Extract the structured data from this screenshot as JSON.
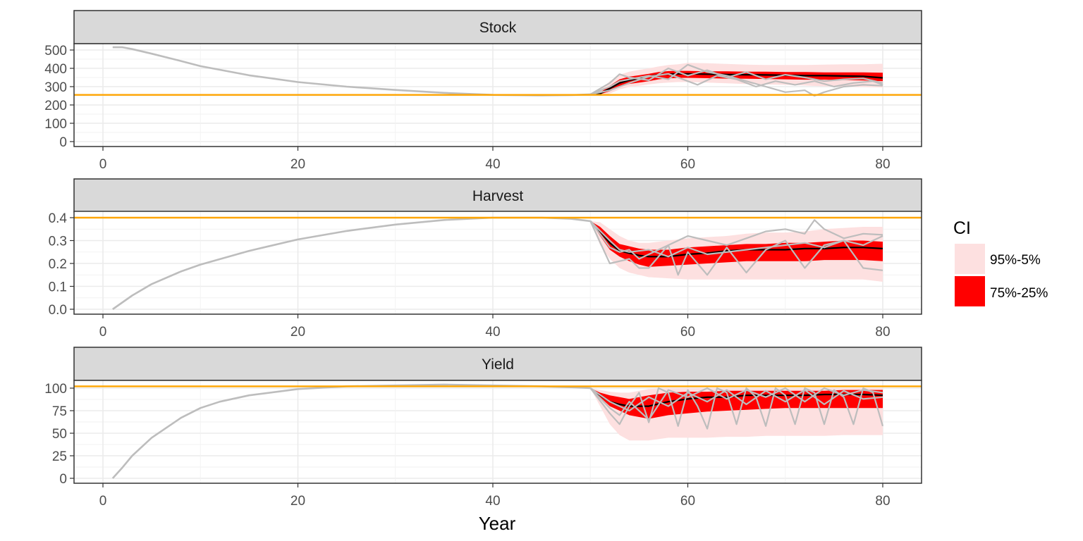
{
  "chart_data": {
    "type": "area",
    "x_label": "Year",
    "x_range": [
      0,
      80
    ],
    "x_ticks": [
      "0",
      "20",
      "40",
      "60",
      "80"
    ],
    "grid": true,
    "legend": {
      "title": "CI",
      "position": "right",
      "items": [
        {
          "label": "95%-5%",
          "color": "#fde0e0"
        },
        {
          "label": "75%-25%",
          "color": "#ff0000"
        }
      ]
    },
    "colors": {
      "reference_line": "#ffa500",
      "median": "#000000",
      "iterations": "#bdbdbd",
      "inner_band": "#ff0000",
      "outer_band": "#fde0e0",
      "strip": "#d9d9d9"
    },
    "panels": [
      {
        "title": "Stock",
        "y_range": [
          0,
          520
        ],
        "y_ticks": [
          0,
          100,
          200,
          300,
          400,
          500
        ],
        "reference": 255,
        "history": {
          "years": [
            1,
            2,
            3,
            5,
            8,
            10,
            15,
            20,
            25,
            30,
            35,
            40,
            45,
            48,
            50
          ],
          "values": [
            515,
            515,
            505,
            480,
            440,
            412,
            362,
            325,
            300,
            282,
            266,
            255,
            252,
            254,
            258
          ]
        },
        "projection": {
          "years": [
            50,
            51,
            52,
            53,
            54,
            55,
            56,
            57,
            58,
            59,
            60,
            62,
            64,
            66,
            68,
            70,
            72,
            74,
            76,
            78,
            80
          ],
          "median": [
            258,
            262,
            290,
            320,
            335,
            345,
            355,
            365,
            368,
            370,
            370,
            368,
            366,
            365,
            364,
            362,
            360,
            360,
            358,
            356,
            348
          ],
          "q25": [
            256,
            258,
            275,
            300,
            315,
            322,
            330,
            340,
            345,
            348,
            348,
            346,
            344,
            343,
            342,
            340,
            338,
            338,
            336,
            334,
            330
          ],
          "q75": [
            260,
            268,
            305,
            340,
            355,
            362,
            370,
            380,
            385,
            386,
            386,
            384,
            384,
            382,
            382,
            380,
            380,
            378,
            378,
            378,
            376
          ],
          "q05": [
            252,
            248,
            262,
            285,
            298,
            305,
            312,
            318,
            322,
            325,
            325,
            322,
            318,
            314,
            312,
            310,
            306,
            302,
            300,
            298,
            295
          ],
          "q95": [
            264,
            280,
            330,
            365,
            382,
            392,
            400,
            410,
            418,
            422,
            430,
            428,
            424,
            420,
            418,
            418,
            418,
            420,
            422,
            422,
            425
          ]
        },
        "iterations": [
          {
            "years": [
              50,
              52,
              53,
              54,
              56,
              58,
              60,
              62,
              64,
              66,
              68,
              70,
              72,
              74,
              76,
              78,
              80
            ],
            "values": [
              258,
              320,
              368,
              350,
              335,
              400,
              360,
              390,
              350,
              380,
              340,
              365,
              350,
              330,
              340,
              345,
              320
            ]
          },
          {
            "years": [
              50,
              52,
              53,
              54,
              56,
              58,
              60,
              62,
              64,
              66,
              68,
              70,
              72,
              73,
              74,
              76,
              78,
              80
            ],
            "values": [
              258,
              300,
              330,
              340,
              360,
              340,
              420,
              380,
              360,
              330,
              300,
              270,
              280,
              250,
              270,
              300,
              310,
              305
            ]
          },
          {
            "years": [
              50,
              52,
              54,
              56,
              58,
              60,
              61,
              63,
              65,
              67,
              69,
              71,
              73,
              75,
              77,
              79,
              80
            ],
            "values": [
              258,
              280,
              320,
              355,
              370,
              330,
              310,
              360,
              340,
              300,
              330,
              310,
              330,
              300,
              320,
              330,
              310
            ]
          }
        ]
      },
      {
        "title": "Harvest",
        "y_range": [
          0,
          0.4
        ],
        "y_ticks": [
          "0.0",
          "0.1",
          "0.2",
          "0.3",
          "0.4"
        ],
        "reference": 0.4,
        "history": {
          "years": [
            1,
            3,
            5,
            8,
            10,
            15,
            20,
            25,
            30,
            35,
            40,
            45,
            48,
            50
          ],
          "values": [
            0.0,
            0.06,
            0.11,
            0.165,
            0.195,
            0.255,
            0.305,
            0.342,
            0.37,
            0.39,
            0.4,
            0.4,
            0.395,
            0.385
          ]
        },
        "projection": {
          "years": [
            50,
            51,
            52,
            53,
            54,
            55,
            56,
            58,
            60,
            62,
            64,
            66,
            68,
            70,
            72,
            74,
            76,
            78,
            80
          ],
          "median": [
            0.385,
            0.34,
            0.29,
            0.255,
            0.245,
            0.235,
            0.23,
            0.23,
            0.24,
            0.245,
            0.255,
            0.26,
            0.26,
            0.26,
            0.265,
            0.265,
            0.27,
            0.27,
            0.265
          ],
          "q25": [
            0.385,
            0.32,
            0.26,
            0.23,
            0.21,
            0.195,
            0.185,
            0.19,
            0.195,
            0.2,
            0.205,
            0.21,
            0.21,
            0.21,
            0.21,
            0.215,
            0.215,
            0.215,
            0.21
          ],
          "q75": [
            0.385,
            0.36,
            0.32,
            0.285,
            0.275,
            0.265,
            0.26,
            0.26,
            0.27,
            0.275,
            0.28,
            0.285,
            0.285,
            0.29,
            0.29,
            0.295,
            0.3,
            0.3,
            0.295
          ],
          "q05": [
            0.385,
            0.28,
            0.22,
            0.18,
            0.16,
            0.15,
            0.14,
            0.135,
            0.13,
            0.13,
            0.13,
            0.13,
            0.13,
            0.13,
            0.13,
            0.13,
            0.13,
            0.13,
            0.12
          ],
          "q95": [
            0.385,
            0.38,
            0.35,
            0.32,
            0.3,
            0.29,
            0.29,
            0.3,
            0.31,
            0.315,
            0.32,
            0.33,
            0.335,
            0.335,
            0.34,
            0.35,
            0.355,
            0.36,
            0.36
          ]
        },
        "iterations": [
          {
            "years": [
              50,
              52,
              53,
              54,
              55,
              56,
              58,
              60,
              62,
              64,
              66,
              68,
              70,
              72,
              73,
              74,
              76,
              78,
              80
            ],
            "values": [
              0.385,
              0.27,
              0.25,
              0.26,
              0.22,
              0.24,
              0.28,
              0.32,
              0.3,
              0.28,
              0.31,
              0.34,
              0.35,
              0.33,
              0.39,
              0.35,
              0.31,
              0.33,
              0.325
            ]
          },
          {
            "years": [
              50,
              52,
              54,
              55,
              56,
              58,
              59,
              60,
              62,
              64,
              66,
              68,
              70,
              72,
              74,
              76,
              78,
              80
            ],
            "values": [
              0.385,
              0.2,
              0.22,
              0.18,
              0.18,
              0.28,
              0.15,
              0.25,
              0.15,
              0.27,
              0.16,
              0.26,
              0.3,
              0.18,
              0.28,
              0.3,
              0.18,
              0.17
            ]
          },
          {
            "years": [
              50,
              52,
              53,
              54,
              56,
              58,
              60,
              62,
              64,
              66,
              68,
              70,
              72,
              74,
              76,
              78,
              80
            ],
            "values": [
              0.385,
              0.3,
              0.26,
              0.25,
              0.26,
              0.23,
              0.27,
              0.24,
              0.25,
              0.26,
              0.27,
              0.28,
              0.29,
              0.27,
              0.3,
              0.28,
              0.32
            ]
          }
        ]
      },
      {
        "title": "Yield",
        "y_range": [
          0,
          108
        ],
        "y_ticks": [
          0,
          25,
          50,
          75,
          100
        ],
        "reference": 102,
        "history": {
          "years": [
            1,
            2,
            3,
            5,
            8,
            10,
            12,
            15,
            20,
            25,
            30,
            35,
            40,
            45,
            48,
            50
          ],
          "values": [
            0,
            12,
            25,
            45,
            67,
            78,
            85,
            92,
            99,
            102,
            103,
            104,
            103,
            102,
            101,
            100
          ]
        },
        "projection": {
          "years": [
            50,
            51,
            52,
            53,
            54,
            55,
            56,
            58,
            60,
            62,
            64,
            66,
            68,
            70,
            72,
            74,
            76,
            78,
            80
          ],
          "median": [
            100,
            92,
            85,
            82,
            80,
            80,
            80,
            85,
            88,
            90,
            90,
            92,
            92,
            92,
            92,
            93,
            93,
            93,
            92
          ],
          "q25": [
            100,
            90,
            80,
            75,
            70,
            68,
            66,
            70,
            72,
            74,
            75,
            76,
            77,
            78,
            78,
            78,
            78,
            78,
            78
          ],
          "q75": [
            100,
            95,
            92,
            90,
            88,
            90,
            92,
            95,
            96,
            96,
            97,
            97,
            97,
            97,
            97,
            97,
            98,
            98,
            98
          ],
          "q05": [
            100,
            80,
            60,
            48,
            42,
            42,
            42,
            45,
            45,
            45,
            46,
            46,
            47,
            47,
            47,
            47,
            48,
            48,
            48
          ],
          "q95": [
            100,
            98,
            96,
            95,
            95,
            97,
            99,
            100,
            100,
            100,
            100,
            100,
            100,
            100,
            100,
            100,
            100,
            100,
            100
          ]
        },
        "iterations": [
          {
            "years": [
              50,
              52,
              53,
              54,
              55,
              56,
              57,
              58,
              59,
              60,
              61,
              62,
              63,
              64,
              65,
              66,
              67,
              68,
              69,
              70,
              71,
              72,
              73,
              74,
              75,
              76,
              77,
              78,
              79,
              80
            ],
            "values": [
              100,
              72,
              60,
              80,
              95,
              62,
              100,
              95,
              58,
              98,
              80,
              55,
              100,
              95,
              60,
              100,
              90,
              58,
              100,
              92,
              60,
              100,
              95,
              60,
              98,
              90,
              60,
              100,
              95,
              58
            ]
          },
          {
            "years": [
              50,
              52,
              54,
              56,
              58,
              60,
              62,
              64,
              66,
              68,
              70,
              72,
              74,
              76,
              78,
              80
            ],
            "values": [
              100,
              85,
              75,
              90,
              80,
              95,
              85,
              98,
              82,
              97,
              85,
              98,
              82,
              97,
              88,
              90
            ]
          },
          {
            "years": [
              50,
              52,
              53,
              54,
              56,
              58,
              60,
              62,
              64,
              66,
              68,
              70,
              72,
              74,
              76,
              78,
              80
            ],
            "values": [
              100,
              78,
              70,
              85,
              65,
              98,
              90,
              100,
              88,
              98,
              90,
              100,
              85,
              100,
              92,
              98,
              95
            ]
          }
        ]
      }
    ]
  }
}
